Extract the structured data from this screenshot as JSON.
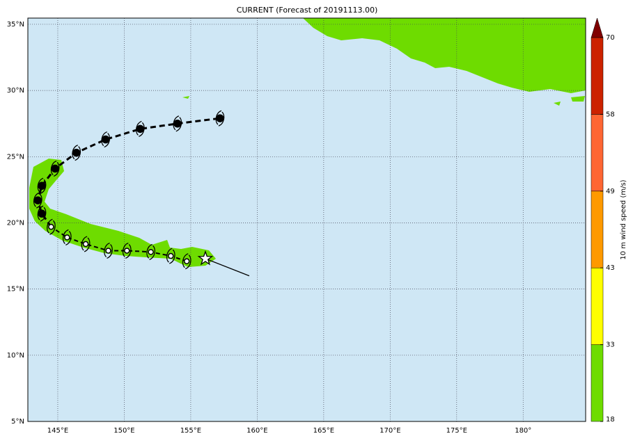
{
  "title": "CURRENT (Forecast of 20191113.00)",
  "map": {
    "lon_range": [
      142.75,
      184.7
    ],
    "lat_range": [
      5,
      35.47
    ],
    "lon_ticks": [
      {
        "value": 145,
        "label": "145°E"
      },
      {
        "value": 150,
        "label": "150°E"
      },
      {
        "value": 155,
        "label": "155°E"
      },
      {
        "value": 160,
        "label": "160°E"
      },
      {
        "value": 165,
        "label": "165°E"
      },
      {
        "value": 170,
        "label": "170°E"
      },
      {
        "value": 175,
        "label": "175°E"
      },
      {
        "value": 180,
        "label": "180°"
      }
    ],
    "lat_ticks": [
      {
        "value": 5,
        "label": "5°N"
      },
      {
        "value": 10,
        "label": "10°N"
      },
      {
        "value": 15,
        "label": "15°N"
      },
      {
        "value": 20,
        "label": "20°N"
      },
      {
        "value": 25,
        "label": "25°N"
      },
      {
        "value": 30,
        "label": "30°N"
      },
      {
        "value": 35,
        "label": "35°N"
      }
    ],
    "grid": true
  },
  "track": {
    "current": {
      "lon": 156.1,
      "lat": 17.3
    },
    "motion_end": {
      "lon": 159.4,
      "lat": 16.0
    },
    "points": [
      {
        "lon": 154.7,
        "lat": 17.1,
        "filled": false
      },
      {
        "lon": 153.5,
        "lat": 17.5,
        "filled": false
      },
      {
        "lon": 152.0,
        "lat": 17.8,
        "filled": false
      },
      {
        "lon": 150.2,
        "lat": 17.9,
        "filled": false
      },
      {
        "lon": 148.8,
        "lat": 17.9,
        "filled": false
      },
      {
        "lon": 147.1,
        "lat": 18.4,
        "filled": false
      },
      {
        "lon": 145.7,
        "lat": 18.9,
        "filled": false
      },
      {
        "lon": 144.5,
        "lat": 19.7,
        "filled": false
      },
      {
        "lon": 143.8,
        "lat": 20.7,
        "filled": true
      },
      {
        "lon": 143.5,
        "lat": 21.7,
        "filled": true
      },
      {
        "lon": 143.8,
        "lat": 22.8,
        "filled": true
      },
      {
        "lon": 144.8,
        "lat": 24.1,
        "filled": true
      },
      {
        "lon": 146.4,
        "lat": 25.3,
        "filled": true
      },
      {
        "lon": 148.6,
        "lat": 26.3,
        "filled": true
      },
      {
        "lon": 151.2,
        "lat": 27.1,
        "filled": true
      },
      {
        "lon": 154.0,
        "lat": 27.5,
        "filled": true
      },
      {
        "lon": 157.2,
        "lat": 27.9,
        "filled": true
      }
    ]
  },
  "colorbar": {
    "label": "10 m wind speed (m/s)",
    "ticks": [
      18,
      33,
      43,
      49,
      58,
      70
    ],
    "colors": [
      "#6edc00",
      "#ffff00",
      "#ff9900",
      "#ff6633",
      "#cc2200"
    ],
    "extend_color": "#800000"
  }
}
